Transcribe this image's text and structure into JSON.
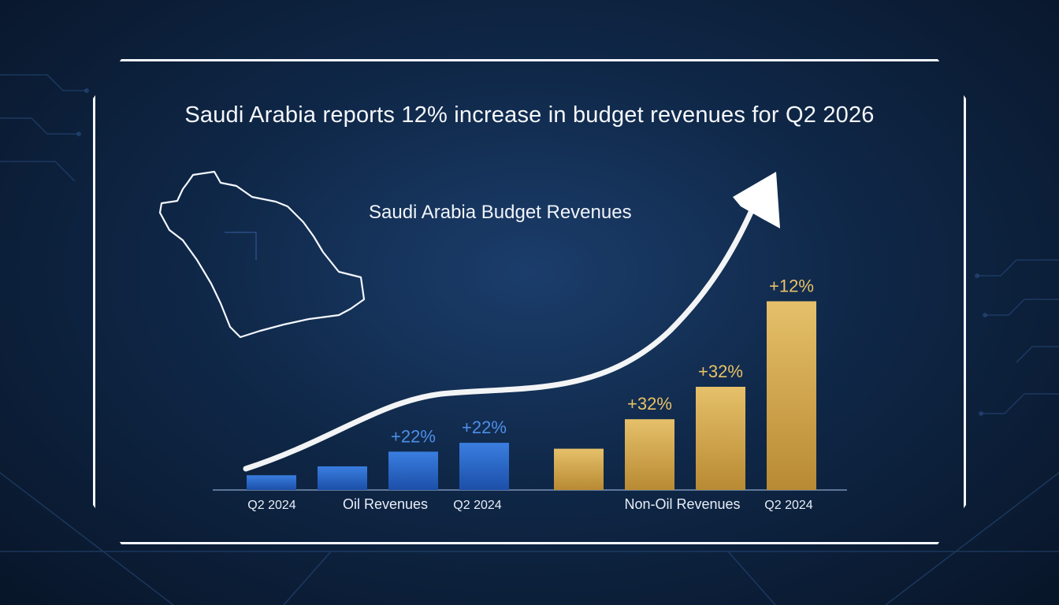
{
  "headline": "Saudi Arabia reports 12% increase in budget revenues for Q2 2026",
  "chart_data": {
    "type": "bar",
    "title": "Saudi Arabia Budget Revenues",
    "groups": [
      {
        "name": "Oil Revenues",
        "color": "#2f6fd6",
        "bars": [
          {
            "value": 10,
            "label": ""
          },
          {
            "value": 16,
            "label": ""
          },
          {
            "value": 26,
            "label": "+22%"
          },
          {
            "value": 32,
            "label": "+22%"
          }
        ]
      },
      {
        "name": "Non-Oil Revenues",
        "color": "#d9ae4f",
        "bars": [
          {
            "value": 28,
            "label": ""
          },
          {
            "value": 48,
            "label": "+32%"
          },
          {
            "value": 70,
            "label": "+32%"
          },
          {
            "value": 128,
            "label": "+12%"
          }
        ]
      }
    ],
    "x_tick_labels": [
      "Q2 2024",
      "Oil Revenues",
      "Q2 2024",
      "Non-Oil Revenues",
      "Q2 2024"
    ],
    "ylim": [
      0,
      140
    ],
    "trend_arrow": true,
    "grid": false
  },
  "colors": {
    "oil_label": "#4d8fe8",
    "non_oil_label": "#e8c167",
    "frame": "#f4f8ff"
  }
}
